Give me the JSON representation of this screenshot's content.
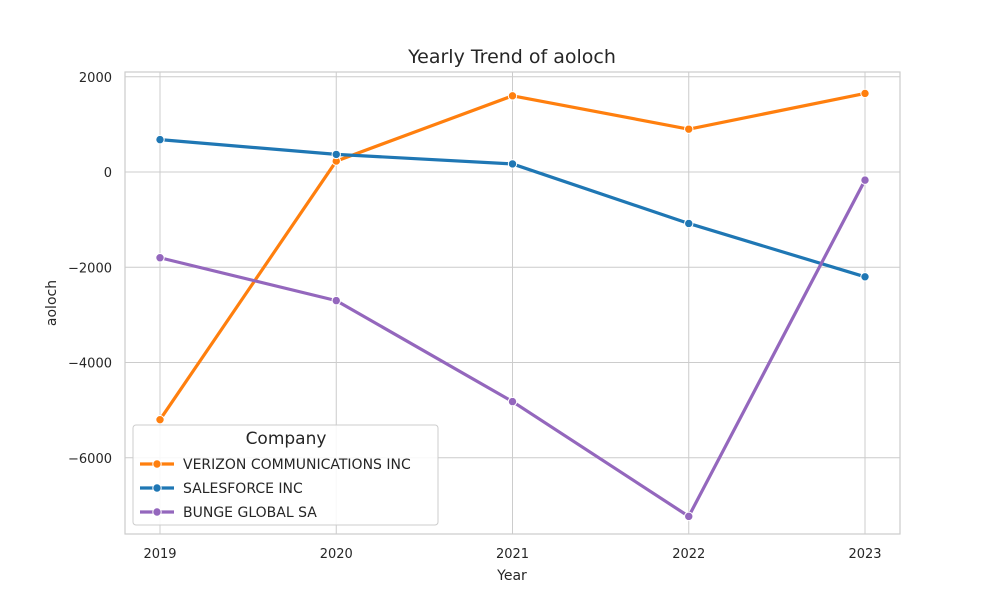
{
  "chart_data": {
    "type": "line",
    "title": "Yearly Trend of aoloch",
    "xlabel": "Year",
    "ylabel": "aoloch",
    "x": [
      "2019",
      "2020",
      "2021",
      "2022",
      "2023"
    ],
    "ylim": [
      -7600,
      2100
    ],
    "yticks": [
      2000,
      0,
      -2000,
      -4000,
      -6000
    ],
    "ytick_labels": [
      "2000",
      "0",
      "−2000",
      "−4000",
      "−6000"
    ],
    "grid": true,
    "legend": {
      "title": "Company",
      "placement": "lower-left"
    },
    "series": [
      {
        "name": "VERIZON COMMUNICATIONS INC",
        "color": "#ff7f0e",
        "values": [
          -5200,
          230,
          1600,
          900,
          1650
        ]
      },
      {
        "name": "SALESFORCE INC",
        "color": "#1f77b4",
        "values": [
          680,
          370,
          170,
          -1080,
          -2200
        ]
      },
      {
        "name": "BUNGE GLOBAL SA",
        "color": "#9467bd",
        "values": [
          -1800,
          -2700,
          -4820,
          -7230,
          -170
        ]
      }
    ]
  }
}
